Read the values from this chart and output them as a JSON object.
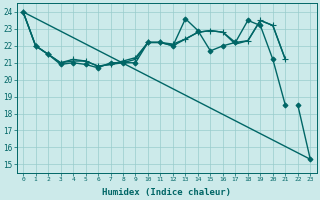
{
  "title": "",
  "xlabel": "Humidex (Indice chaleur)",
  "bg_color": "#cceaea",
  "grid_color": "#99cccc",
  "line_color": "#006666",
  "xlim": [
    -0.5,
    23.5
  ],
  "ylim": [
    14.5,
    24.5
  ],
  "yticks": [
    15,
    16,
    17,
    18,
    19,
    20,
    21,
    22,
    23,
    24
  ],
  "xticks": [
    0,
    1,
    2,
    3,
    4,
    5,
    6,
    7,
    8,
    9,
    10,
    11,
    12,
    13,
    14,
    15,
    16,
    17,
    18,
    19,
    20,
    21,
    22,
    23
  ],
  "series": [
    {
      "x": [
        0,
        1,
        2,
        3,
        4,
        5,
        6,
        7,
        8,
        9,
        10,
        11,
        12,
        13,
        14,
        15,
        16,
        17,
        18,
        19,
        20,
        21
      ],
      "y": [
        24,
        22,
        21.5,
        20.9,
        21.0,
        20.9,
        20.7,
        21.0,
        21.0,
        21.0,
        22.2,
        22.2,
        22.0,
        23.6,
        22.9,
        21.7,
        22.0,
        22.2,
        23.5,
        23.2,
        21.2,
        18.5
      ],
      "marker": "D",
      "markersize": 2.5,
      "linewidth": 1.0
    },
    {
      "x": [
        0,
        1,
        2,
        3,
        4,
        5,
        6,
        7,
        8,
        9,
        10,
        11,
        12,
        13,
        14,
        15,
        16,
        17,
        18,
        19,
        20,
        21
      ],
      "y": [
        24,
        22,
        21.5,
        21.0,
        21.2,
        21.1,
        20.8,
        20.9,
        21.1,
        21.3,
        22.2,
        22.2,
        22.1,
        22.4,
        22.8,
        22.9,
        22.8,
        22.2,
        22.3,
        23.5,
        23.2,
        21.2
      ],
      "marker": "+",
      "markersize": 4,
      "linewidth": 1.0
    },
    {
      "x": [
        0,
        1,
        2,
        3,
        4,
        5,
        6,
        7,
        8,
        9,
        10,
        11,
        12,
        13,
        14,
        15,
        16,
        17,
        18,
        19,
        20,
        21
      ],
      "y": [
        24,
        22,
        21.5,
        21.0,
        21.1,
        21.1,
        20.8,
        20.9,
        21.0,
        21.2,
        22.2,
        22.2,
        22.0,
        22.4,
        22.8,
        22.9,
        22.8,
        22.1,
        22.3,
        23.5,
        23.2,
        21.2
      ],
      "marker": null,
      "markersize": 0,
      "linewidth": 1.0
    },
    {
      "x": [
        0,
        23
      ],
      "y": [
        24,
        15.3
      ],
      "marker": null,
      "markersize": 0,
      "linewidth": 1.0
    },
    {
      "x": [
        22,
        23
      ],
      "y": [
        18.5,
        15.3
      ],
      "marker": "D",
      "markersize": 2.5,
      "linewidth": 1.0
    }
  ]
}
